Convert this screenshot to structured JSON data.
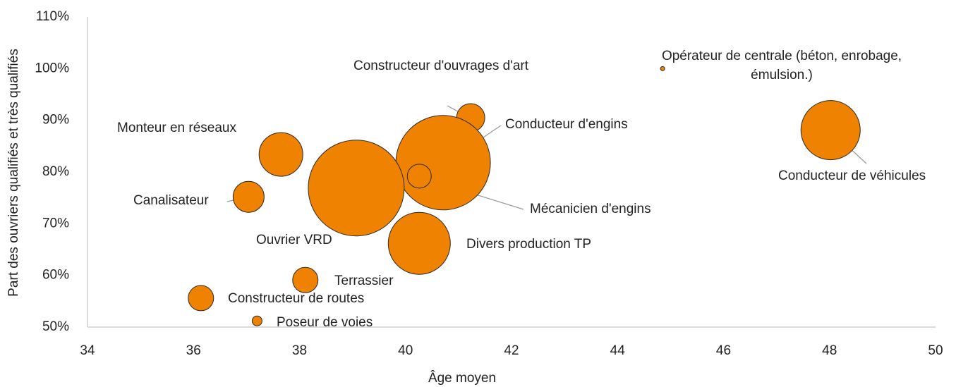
{
  "chart_data": {
    "type": "bubble",
    "x_label": "Âge moyen",
    "y_label": "Part des ouvriers qualifiés et très qualifiés",
    "color": "#ef8200",
    "xlim": [
      34,
      50
    ],
    "xticks": [
      34,
      36,
      38,
      40,
      42,
      44,
      46,
      48,
      50
    ],
    "ylim": [
      50,
      110
    ],
    "yticks": [
      {
        "value": 50,
        "label": "50%"
      },
      {
        "value": 60,
        "label": "60%"
      },
      {
        "value": 70,
        "label": "70%"
      },
      {
        "value": 80,
        "label": "80%"
      },
      {
        "value": 90,
        "label": "90%"
      },
      {
        "value": 100,
        "label": "100%"
      },
      {
        "value": 110,
        "label": "110%"
      }
    ],
    "labels": [
      "Opérateur de centrale (béton, enrobage, émulsion.)",
      "Conducteur de véhicules",
      "Constructeur d'ouvrages d'art",
      "Conducteur d'engins",
      "Mécanicien d'engins",
      "Monteur en réseaux",
      "Canalisateur",
      "Ouvrier VRD",
      "Divers production TP",
      "Terrassier",
      "Constructeur de routes",
      "Poseur de voies"
    ],
    "x": [
      44.85,
      48.02,
      41.23,
      40.71,
      40.26,
      37.65,
      37.04,
      39.07,
      40.26,
      38.11,
      36.14,
      37.2
    ],
    "values": [
      100,
      88.1,
      90.5,
      81.8,
      79.2,
      83.4,
      75.2,
      76.9,
      66.2,
      59.1,
      55.6,
      51.2
    ],
    "sizes": [
      9,
      1764,
      400,
      4489,
      289,
      961,
      484,
      4624,
      1936,
      324,
      324,
      49
    ]
  }
}
